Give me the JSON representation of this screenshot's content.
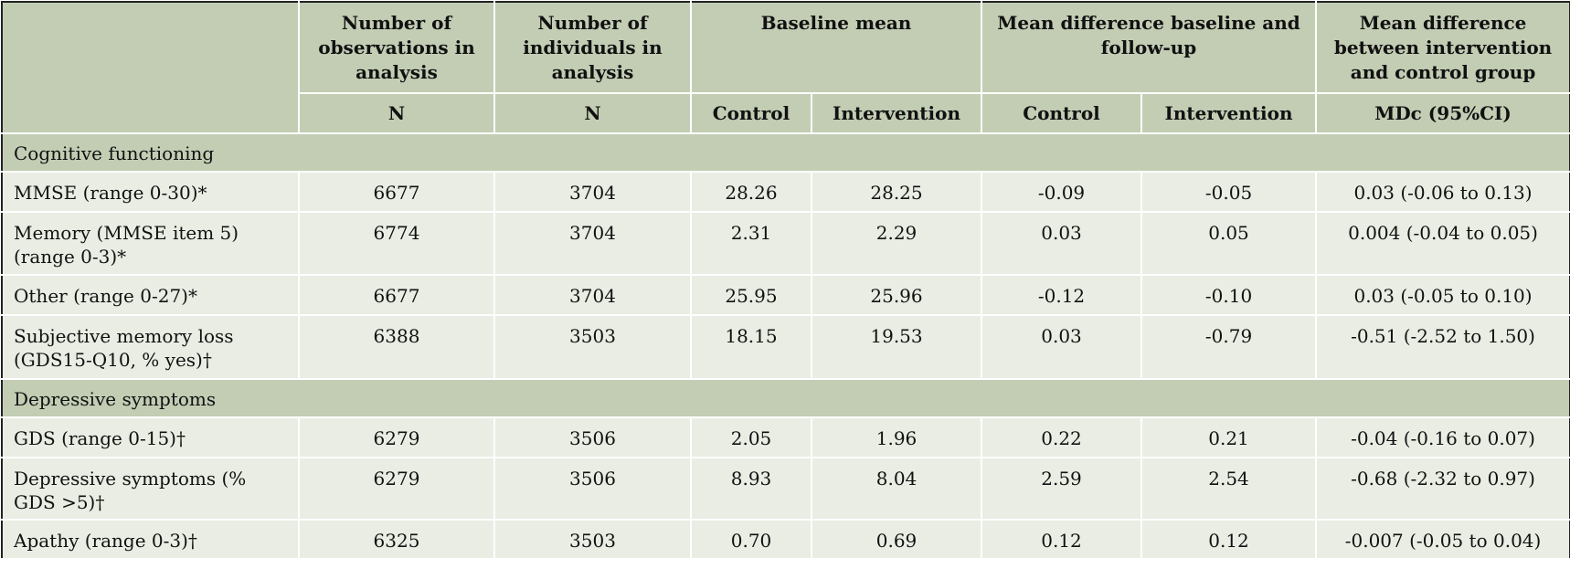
{
  "header": {
    "col_obs": "Number of observations in analysis",
    "col_ind": "Number of individuals in analysis",
    "col_baseline": "Baseline mean",
    "col_mean_diff": "Mean difference baseline and follow-up",
    "col_mean_diff_groups": "Mean difference between intervention and control group",
    "sub_n1": "N",
    "sub_n2": "N",
    "sub_control1": "Control",
    "sub_intervention1": "Intervention",
    "sub_control2": "Control",
    "sub_intervention2": "Intervention",
    "sub_mdc": "MDc (95%CI)"
  },
  "sections": [
    {
      "title": "Cognitive functioning",
      "rows": [
        {
          "label": "MMSE (range 0-30)*",
          "obs": "6677",
          "ind": "3704",
          "base_control": "28.26",
          "base_intervention": "28.25",
          "diff_control": "-0.09",
          "diff_intervention": "-0.05",
          "mdc": "0.03 (-0.06 to 0.13)"
        },
        {
          "label": "Memory (MMSE item 5) (range 0-3)*",
          "obs": "6774",
          "ind": "3704",
          "base_control": "2.31",
          "base_intervention": "2.29",
          "diff_control": "0.03",
          "diff_intervention": "0.05",
          "mdc": "0.004 (-0.04 to 0.05)"
        },
        {
          "label": "Other (range 0-27)*",
          "obs": "6677",
          "ind": "3704",
          "base_control": "25.95",
          "base_intervention": "25.96",
          "diff_control": "-0.12",
          "diff_intervention": "-0.10",
          "mdc": "0.03 (-0.05 to 0.10)"
        },
        {
          "label": "Subjective memory loss (GDS15-Q10, % yes)†",
          "obs": "6388",
          "ind": "3503",
          "base_control": "18.15",
          "base_intervention": "19.53",
          "diff_control": "0.03",
          "diff_intervention": "-0.79",
          "mdc": "-0.51 (-2.52 to 1.50)"
        }
      ]
    },
    {
      "title": "Depressive symptoms",
      "rows": [
        {
          "label": "GDS (range 0-15)†",
          "obs": "6279",
          "ind": "3506",
          "base_control": "2.05",
          "base_intervention": "1.96",
          "diff_control": "0.22",
          "diff_intervention": "0.21",
          "mdc": "-0.04 (-0.16 to 0.07)"
        },
        {
          "label": "Depressive symptoms (% GDS >5)†",
          "obs": "6279",
          "ind": "3506",
          "base_control": "8.93",
          "base_intervention": "8.04",
          "diff_control": "2.59",
          "diff_intervention": "2.54",
          "mdc": "-0.68 (-2.32 to 0.97)"
        },
        {
          "label": "Apathy (range 0-3)†",
          "obs": "6325",
          "ind": "3503",
          "base_control": "0.70",
          "base_intervention": "0.69",
          "diff_control": "0.12",
          "diff_intervention": "0.12",
          "mdc": "-0.007 (-0.05 to 0.04)"
        }
      ]
    }
  ]
}
